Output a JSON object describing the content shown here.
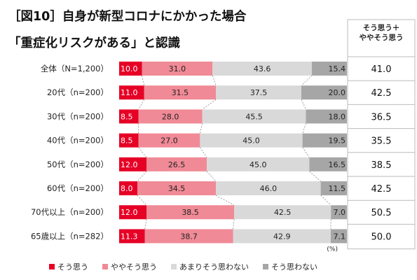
{
  "title_line1": "［図10］自身が新型コロナにかかった場合",
  "title_line2": "「重症化リスクがある」と認識",
  "summary_header_line1": "そう思う＋",
  "summary_header_line2": "ややそう思う",
  "unit_label": "(%)",
  "colors": {
    "soo_omou": "#e60026",
    "yaya_soo_omou": "#f08a96",
    "amari": "#d9d9d9",
    "soo_omowanai": "#a6a6a6"
  },
  "chart_data": {
    "type": "bar",
    "orientation": "horizontal",
    "stacked": true,
    "percent": true,
    "xlim": [
      0,
      100
    ],
    "categories": [
      "全体（N=1,200）",
      "20代（n=200）",
      "30代（n=200）",
      "40代（n=200）",
      "50代（n=200）",
      "60代（n=200）",
      "70代以上（n=200）",
      "65歳以上（n=282）"
    ],
    "series": [
      {
        "name": "そう思う",
        "color": "#e60026",
        "values": [
          10.0,
          11.0,
          8.5,
          8.5,
          12.0,
          8.0,
          12.0,
          11.3
        ]
      },
      {
        "name": "ややそう思う",
        "color": "#f08a96",
        "values": [
          31.0,
          31.5,
          28.0,
          27.0,
          26.5,
          34.5,
          38.5,
          38.7
        ]
      },
      {
        "name": "あまりそう思わない",
        "color": "#d9d9d9",
        "values": [
          43.6,
          37.5,
          45.5,
          45.0,
          45.0,
          46.0,
          42.5,
          42.9
        ]
      },
      {
        "name": "そう思わない",
        "color": "#a6a6a6",
        "values": [
          15.4,
          20.0,
          18.0,
          19.5,
          16.5,
          11.5,
          7.0,
          7.1
        ]
      }
    ],
    "summary": [
      "41.0",
      "42.5",
      "36.5",
      "35.5",
      "38.5",
      "42.5",
      "50.5",
      "50.0"
    ],
    "legend_position": "bottom",
    "grid": false
  }
}
